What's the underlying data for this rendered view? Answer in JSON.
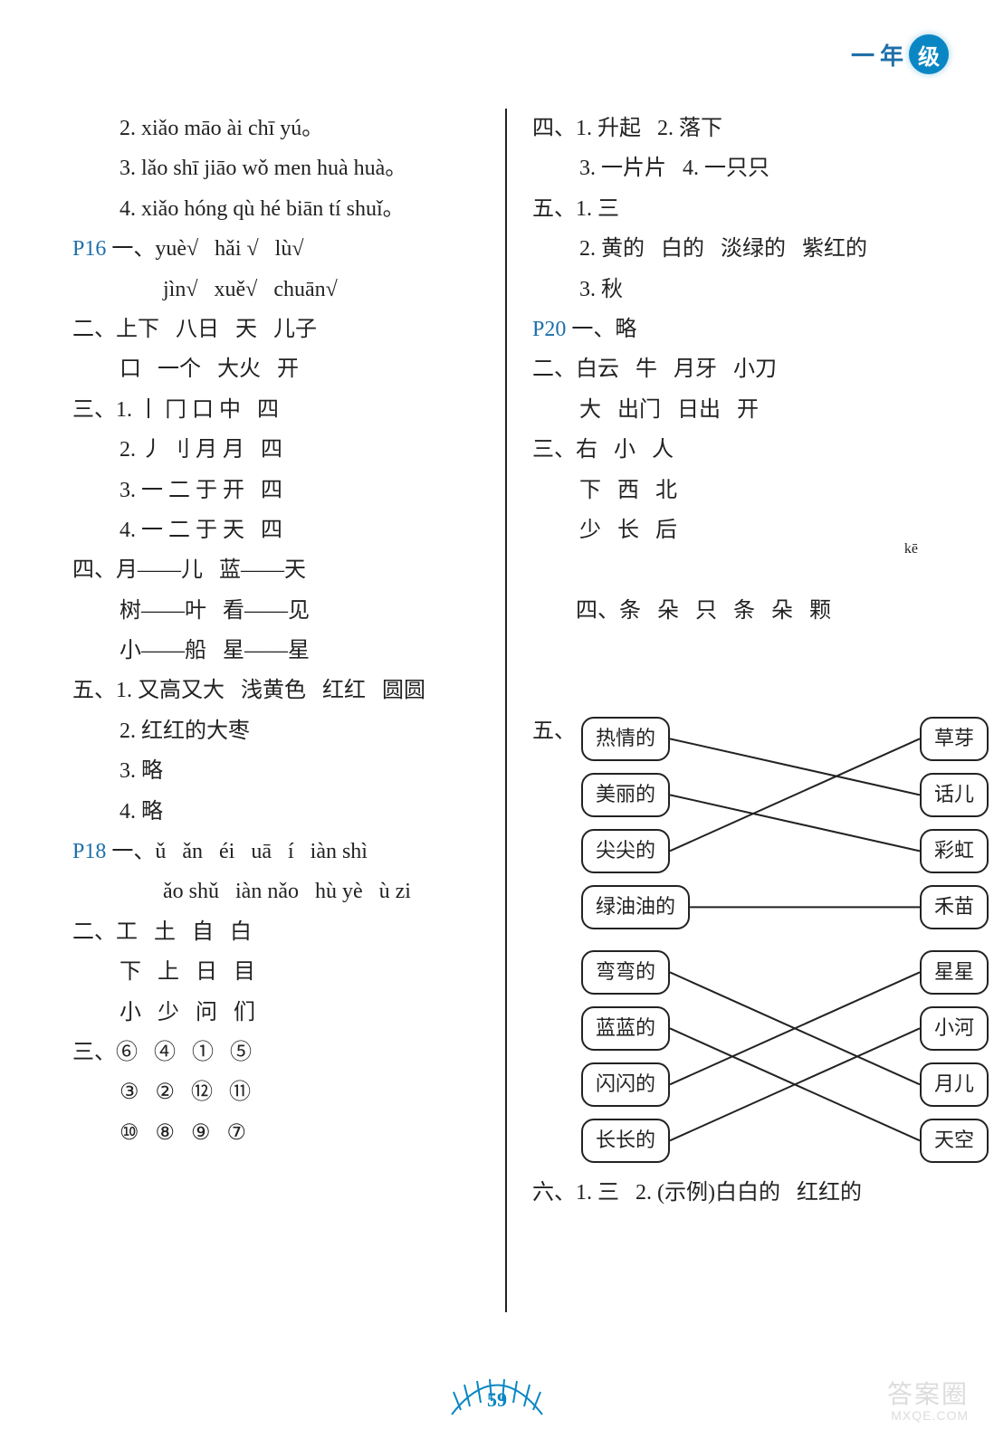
{
  "header": {
    "grade_dash": "一",
    "grade_year": "年",
    "grade_level": "级"
  },
  "left": {
    "l01": "2. xiǎo māo ài chī yú。",
    "l02": "3. lǎo shī jiāo wǒ men huà huà。",
    "l03": "4. xiǎo hóng qù hé biān tí shuǐ。",
    "p16_label": "P16",
    "l04a": " 一、yuè√   hǎi √   lù√",
    "l04b": "jìn√   xuě√   chuān√",
    "l05": "二、上下   八日   天   儿子",
    "l06": "口   一个   大火   开",
    "l07": "三、1. 丨 冂 口 中   四",
    "l08": "2. 丿 刂 月 月   四",
    "l09": "3. 一 二 于 开   四",
    "l10": "4. 一 二 于 天   四",
    "l11": "四、月——儿   蓝——天",
    "l12": "树——叶   看——见",
    "l13": "小——船   星——星",
    "l14": "五、1. 又高又大   浅黄色   红红   圆圆",
    "l15": "2. 红红的大枣",
    "l16": "3. 略",
    "l17": "4. 略",
    "p18_label": "P18",
    "l18a": " 一、ǔ   ǎn   éi   uā   í   iàn shì",
    "l18b": "ǎo shǔ   iàn nǎo   hù yè   ù zi",
    "l19": "二、工   土   自   白",
    "l20": "下   上   日   目",
    "l21": "小   少   问   们",
    "l22": "三、⑥   ④   ①   ⑤",
    "l23": "③   ②   ⑫   ⑪",
    "l24": "⑩   ⑧   ⑨   ⑦"
  },
  "right": {
    "r01": "四、1. 升起   2. 落下",
    "r02": "3. 一片片   4. 一只只",
    "r03": "五、1. 三",
    "r04": "2. 黄的   白的   淡绿的   紫红的",
    "r05": "3. 秋",
    "p20_label": "P20",
    "r06": " 一、略",
    "r07": "二、白云   牛   月牙   小刀",
    "r08": "大   出门   日出   开",
    "r09": "三、右   小   人",
    "r10": "下   西   北",
    "r11": "少   长   后",
    "r12_ruby": "kē",
    "r12": "四、条   朵   只   条   朵   颗",
    "r13": "五、",
    "match1": {
      "left": [
        "热情的",
        "美丽的",
        "尖尖的",
        "绿油油的"
      ],
      "right": [
        "草芽",
        "话儿",
        "彩虹",
        "禾苗"
      ],
      "edges": [
        [
          0,
          1
        ],
        [
          1,
          2
        ],
        [
          2,
          0
        ],
        [
          3,
          3
        ]
      ],
      "line_color": "#222222"
    },
    "match2": {
      "left": [
        "弯弯的",
        "蓝蓝的",
        "闪闪的",
        "长长的"
      ],
      "right": [
        "星星",
        "小河",
        "月儿",
        "天空"
      ],
      "edges": [
        [
          0,
          2
        ],
        [
          1,
          3
        ],
        [
          2,
          0
        ],
        [
          3,
          1
        ]
      ],
      "line_color": "#222222"
    },
    "r14": "六、1. 三   2. (示例)白白的   红红的"
  },
  "footer": {
    "page_number": "59",
    "watermark_top": "答案圈",
    "watermark_bottom": "MXQE.COM"
  },
  "style": {
    "text_color": "#222222",
    "pref_color": "#1e6fa8",
    "badge_bg": "#0a86c4",
    "font_size_body": 24,
    "font_size_bubble": 22
  }
}
